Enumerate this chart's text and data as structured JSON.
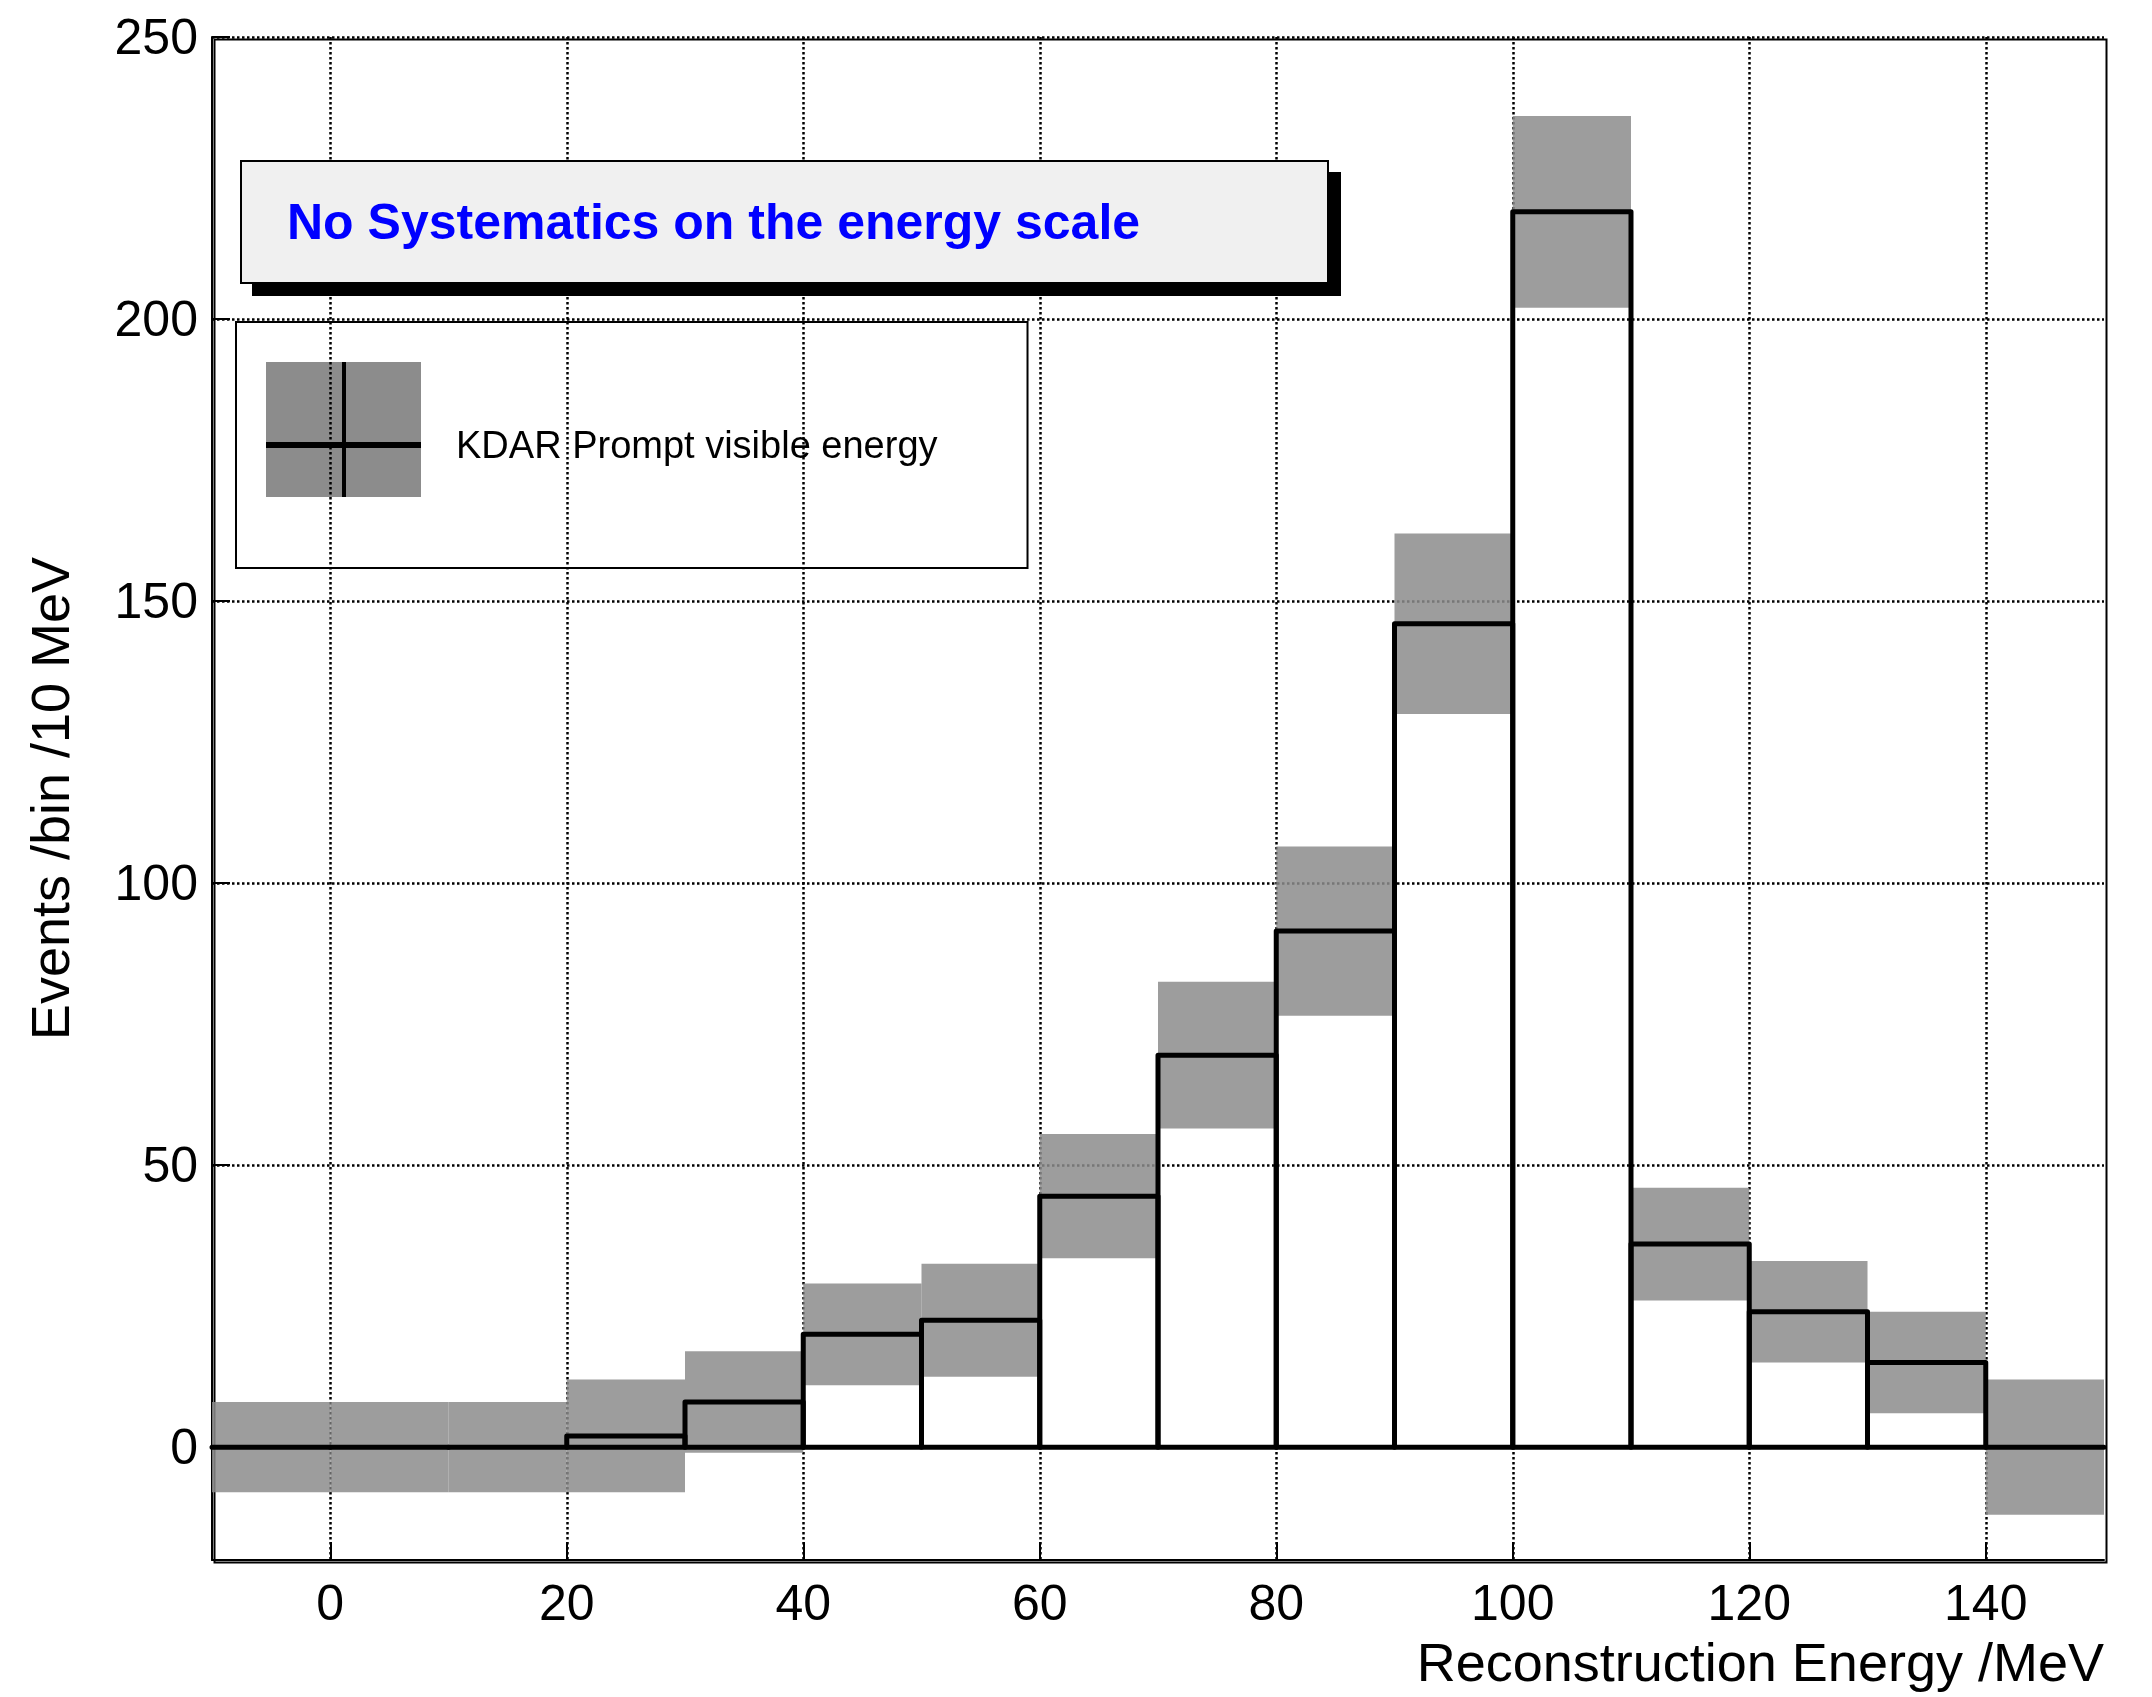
{
  "chart_data": {
    "type": "histogram",
    "xlabel": "Reconstruction Energy /MeV",
    "ylabel": "Events /bin /10 MeV",
    "annotations": [
      "No Systematics on the energy scale"
    ],
    "bins": [
      -10,
      0,
      10,
      20,
      30,
      40,
      50,
      60,
      70,
      80,
      90,
      100,
      110,
      120,
      130,
      140,
      150
    ],
    "series": [
      {
        "name": "KDAR Prompt visible energy",
        "color": "#000000",
        "values": [
          0,
          0,
          0,
          2,
          8,
          20,
          22.5,
          44.5,
          69.5,
          91.5,
          146,
          219,
          36,
          24,
          15,
          0
        ],
        "errors": [
          8,
          8,
          8,
          10,
          9,
          9,
          10,
          11,
          13,
          15,
          16,
          17,
          10,
          9,
          9,
          12
        ]
      }
    ],
    "xlim": [
      -10,
      150
    ],
    "xticks": [
      0,
      20,
      40,
      60,
      80,
      100,
      120,
      140
    ],
    "ylim": [
      -20,
      250
    ],
    "yticks": [
      0,
      50,
      100,
      150,
      200,
      250
    ],
    "grid": true,
    "legend": "top left"
  }
}
